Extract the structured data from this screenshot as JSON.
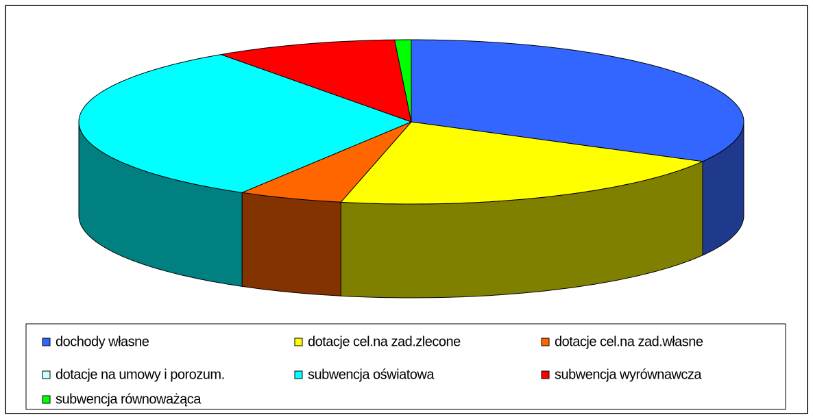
{
  "chart_data": {
    "type": "pie3d",
    "labels": [
      "dochody własne",
      "dotacje cel.na zad.zlecone",
      "dotacje cel.na zad.własne",
      "dotacje na umowy i porozum.",
      "subwencja oświatowa",
      "subwencja wyrównawcza",
      "subwencja równoważąca"
    ],
    "values": [
      33.0,
      20.4,
      5.1,
      0,
      31.8,
      8.9,
      0.8
    ],
    "colors": [
      "#3366ff",
      "#ffff00",
      "#ff6600",
      "#ccffff",
      "#00ffff",
      "#ff0000",
      "#00ff00"
    ],
    "side_colors": [
      "#1f3a8c",
      "#808000",
      "#833300",
      "#7a9999",
      "#008080",
      "#800000",
      "#008000"
    ],
    "legend": "bottom"
  }
}
